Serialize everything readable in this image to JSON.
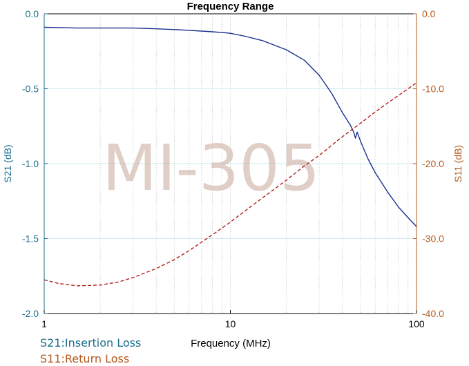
{
  "chart_data": {
    "type": "line",
    "title": "Frequency Range",
    "xlabel": "Frequency (MHz)",
    "ylabel_left": "S21 (dB)",
    "ylabel_right": "S11 (dB)",
    "x_scale": "log",
    "xlim": [
      1,
      100
    ],
    "ylim_left": [
      -2.0,
      0.0
    ],
    "ylim_right": [
      -40.0,
      0.0
    ],
    "x_ticks": [
      "1",
      "10",
      "100"
    ],
    "y_ticks_left": [
      "0.0",
      "-0.5",
      "-1.0",
      "-1.5",
      "-2.0"
    ],
    "y_ticks_right": [
      "0.0",
      "-10.0",
      "-20.0",
      "-30.0",
      "-40.0"
    ],
    "grid": true,
    "watermark": "MI-305",
    "colors": {
      "s21": "#1a2f8c",
      "s11": "#b0201a",
      "left_axis": "#1a6e8c",
      "right_axis": "#b35a1f"
    },
    "series": [
      {
        "name": "S21:Insertion Loss",
        "axis": "left",
        "style": "solid",
        "x": [
          1,
          1.5,
          2,
          3,
          4,
          5,
          6,
          7,
          8,
          9,
          10,
          12,
          15,
          20,
          25,
          30,
          35,
          40,
          44,
          46,
          47,
          48,
          50,
          55,
          60,
          70,
          80,
          90,
          100
        ],
        "y": [
          -0.09,
          -0.095,
          -0.095,
          -0.095,
          -0.1,
          -0.105,
          -0.11,
          -0.115,
          -0.12,
          -0.125,
          -0.13,
          -0.15,
          -0.18,
          -0.24,
          -0.31,
          -0.41,
          -0.53,
          -0.66,
          -0.74,
          -0.79,
          -0.83,
          -0.79,
          -0.85,
          -0.97,
          -1.06,
          -1.19,
          -1.29,
          -1.36,
          -1.42
        ]
      },
      {
        "name": "S11:Return Loss",
        "axis": "right",
        "style": "dashed",
        "x": [
          1,
          1.2,
          1.5,
          2,
          2.5,
          3,
          4,
          5,
          6,
          8,
          10,
          12,
          15,
          20,
          25,
          30,
          40,
          50,
          60,
          70,
          80,
          90,
          100
        ],
        "y": [
          -35.5,
          -36.0,
          -36.3,
          -36.2,
          -35.8,
          -35.2,
          -34.0,
          -32.8,
          -31.6,
          -29.5,
          -27.8,
          -26.3,
          -24.5,
          -22.2,
          -20.3,
          -18.9,
          -16.4,
          -14.6,
          -13.1,
          -11.9,
          -10.9,
          -10.0,
          -9.2
        ]
      }
    ]
  }
}
